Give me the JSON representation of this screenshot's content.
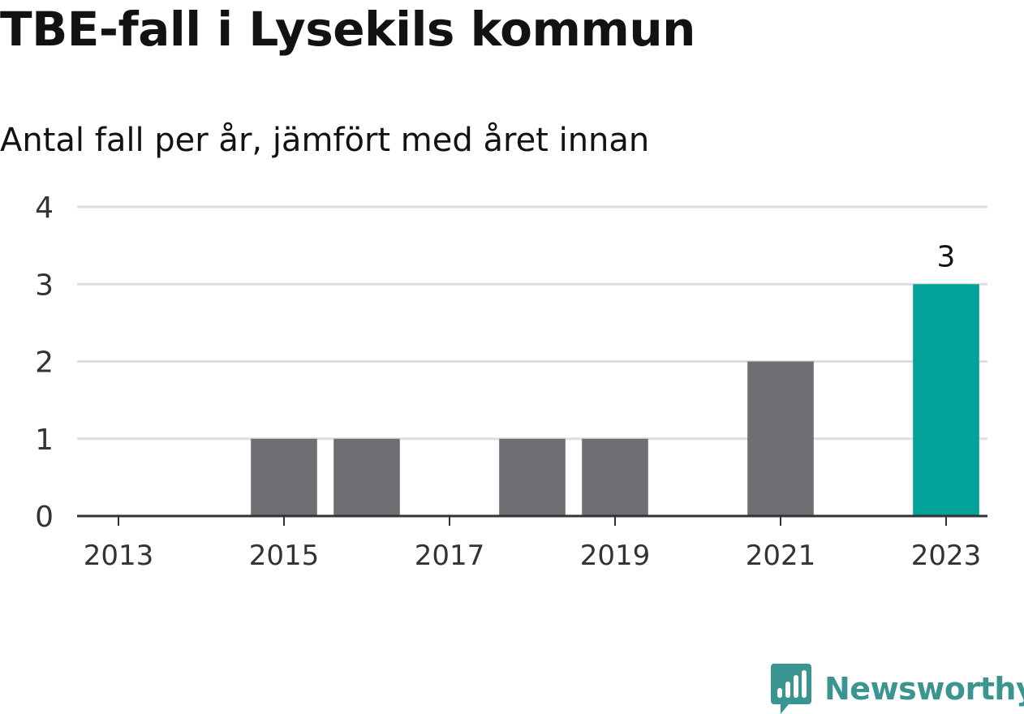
{
  "header": {
    "title": "TBE-fall i Lysekils kommun",
    "subtitle": "Antal fall per år, jämfört med året innan"
  },
  "brand": {
    "name": "Newsworthy",
    "color": "#3a9590",
    "icon": "bar-chart-speech-bubble-icon"
  },
  "colors": {
    "bar": "#6f6e73",
    "highlight": "#00a29a",
    "grid": "#dddddd",
    "axis": "#333333"
  },
  "chart_data": {
    "type": "bar",
    "categories": [
      "2013",
      "2014",
      "2015",
      "2016",
      "2017",
      "2018",
      "2019",
      "2020",
      "2021",
      "2022",
      "2023"
    ],
    "values": [
      0,
      0,
      1,
      1,
      0,
      1,
      1,
      0,
      2,
      0,
      3
    ],
    "x_tick_labels": [
      "2013",
      "2015",
      "2017",
      "2019",
      "2021",
      "2023"
    ],
    "y_ticks": [
      0,
      1,
      2,
      3,
      4
    ],
    "ylim": [
      0,
      4
    ],
    "highlight_category": "2023",
    "data_labels": [
      {
        "category": "2023",
        "text": "3"
      }
    ],
    "grid": true,
    "legend": false
  }
}
